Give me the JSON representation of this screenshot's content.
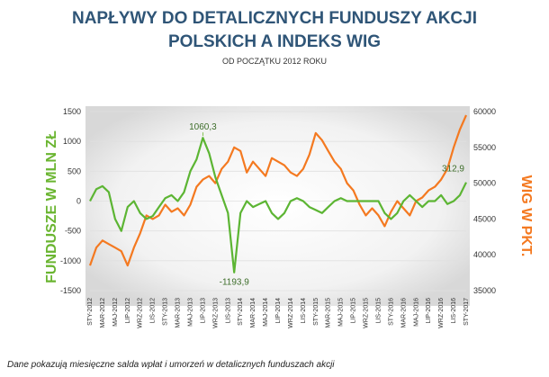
{
  "chart_data": {
    "type": "line",
    "title_line1": "NAPŁYWY DO DETALICZNYCH FUNDUSZY AKCJI",
    "title_line2": "POLSKICH A INDEKS WIG",
    "subtitle": "OD POCZĄTKU 2012 ROKU",
    "ylabel_left": "FUNDUSZE W MLN ZŁ",
    "ylabel_right": "WIG W PKT.",
    "footnote": "Dane pokazują miesięczne salda wpłat i umorzeń  w detalicznych funduszach akcji",
    "ylim_left": [
      -1500,
      1500
    ],
    "yticks_left": [
      -1500,
      -1000,
      -500,
      0,
      500,
      1000,
      1500
    ],
    "ylim_right": [
      35000,
      60000
    ],
    "yticks_right": [
      35000,
      40000,
      45000,
      50000,
      55000,
      60000
    ],
    "x_tick_labels": [
      "STY-2012",
      "MAR-2012",
      "MAJ-2012",
      "LIP-2012",
      "WRZ-2012",
      "LIS-2012",
      "STY-2013",
      "MAR-2013",
      "MAJ-2013",
      "LIP-2013",
      "WRZ-2013",
      "LIS-2013",
      "STY-2014",
      "MAR-2014",
      "MAJ-2014",
      "LIP-2014",
      "WRZ-2014",
      "LIS-2014",
      "STY-2015",
      "MAR-2015",
      "MAJ-2015",
      "LIP-2015",
      "WRZ-2015",
      "LIS-2015",
      "STY-2016",
      "MAR-2016",
      "MAJ-2016",
      "LIP-2016",
      "WRZ-2016",
      "LIS-2016",
      "STY-2017"
    ],
    "grid": true,
    "colors": {
      "funds": "#5cb533",
      "wig": "#f47920",
      "title": "#2f5577",
      "annotation": "#3d6d2a"
    },
    "series": [
      {
        "axis": "left",
        "values": [
          0,
          200,
          250,
          150,
          -300,
          -500,
          -100,
          0,
          -200,
          -300,
          -250,
          -100,
          50,
          100,
          0,
          150,
          500,
          700,
          1060.3,
          800,
          400,
          100,
          -200,
          -1193.9,
          -200,
          0,
          -100,
          -50,
          0,
          -200,
          -300,
          -200,
          0,
          50,
          0,
          -100,
          -150,
          -200,
          -100,
          0,
          50,
          0,
          0,
          0,
          0,
          0,
          0,
          -200,
          -300,
          -200,
          0,
          100,
          0,
          -100,
          0,
          0,
          100,
          -50,
          0,
          100,
          312.9
        ]
      },
      {
        "axis": "right",
        "values": [
          38500,
          41000,
          42000,
          41500,
          41000,
          40500,
          38500,
          41000,
          43000,
          45500,
          45000,
          45500,
          47000,
          46000,
          46500,
          45500,
          47000,
          49500,
          50500,
          51000,
          50000,
          52000,
          53000,
          55000,
          54500,
          51500,
          53000,
          52000,
          51000,
          53500,
          53000,
          52500,
          51500,
          51000,
          52000,
          54000,
          57000,
          56000,
          54500,
          53000,
          52000,
          50000,
          49000,
          47000,
          45500,
          46500,
          45500,
          44000,
          46000,
          47500,
          46500,
          45500,
          47500,
          48000,
          49000,
          49500,
          50500,
          52000,
          55000,
          57500,
          59500
        ]
      }
    ],
    "annotations": [
      {
        "text": "1060,3",
        "index": 18,
        "value": 1060.3,
        "placement": "above"
      },
      {
        "text": "-1193,9",
        "index": 23,
        "value": -1193.9,
        "placement": "below"
      },
      {
        "text": "312,9",
        "index": 60,
        "value": 312.9,
        "placement": "above-left"
      }
    ]
  }
}
